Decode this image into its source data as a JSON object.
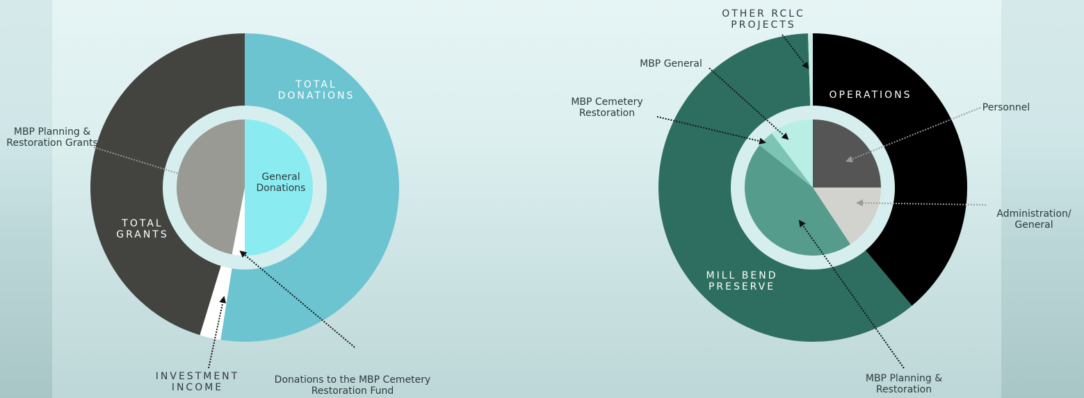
{
  "chart_data": [
    {
      "type": "nested-pie",
      "outer": {
        "labels": [
          "TOTAL DONATIONS",
          "INVESTMENT INCOME",
          "TOTAL GRANTS"
        ],
        "values": [
          52.5,
          2.2,
          45.3
        ],
        "colors": [
          "#6cc4d0",
          "#ffffff",
          "#43433f"
        ]
      },
      "inner": {
        "labels": [
          "General Donations",
          "Donations to the MBP Cemetery Restoration Fund",
          "MBP Planning & Restoration Grants"
        ],
        "values": [
          50,
          3,
          47
        ],
        "colors": [
          "#8aecf0",
          "#ffffff",
          "#9a9a95"
        ]
      }
    },
    {
      "type": "nested-pie",
      "outer": {
        "labels": [
          "OPERATIONS",
          "MILL BEND PRESERVE",
          "OTHER RCLC PROJECTS"
        ],
        "values": [
          38.9,
          60.6,
          0.5
        ],
        "colors": [
          "#000000",
          "#2e6e60",
          "#c8eee8"
        ]
      },
      "inner": {
        "labels": [
          "Personnel",
          "Administration/ General",
          "MBP Planning & Restoration",
          "MBP Cemetery Restoration",
          "MBP General"
        ],
        "values": [
          25,
          15.7,
          45,
          4,
          10.3
        ],
        "colors": [
          "#555555",
          "#d2d2ce",
          "#559c8c",
          "#7dc4b4",
          "#b8eee4"
        ]
      }
    }
  ]
}
